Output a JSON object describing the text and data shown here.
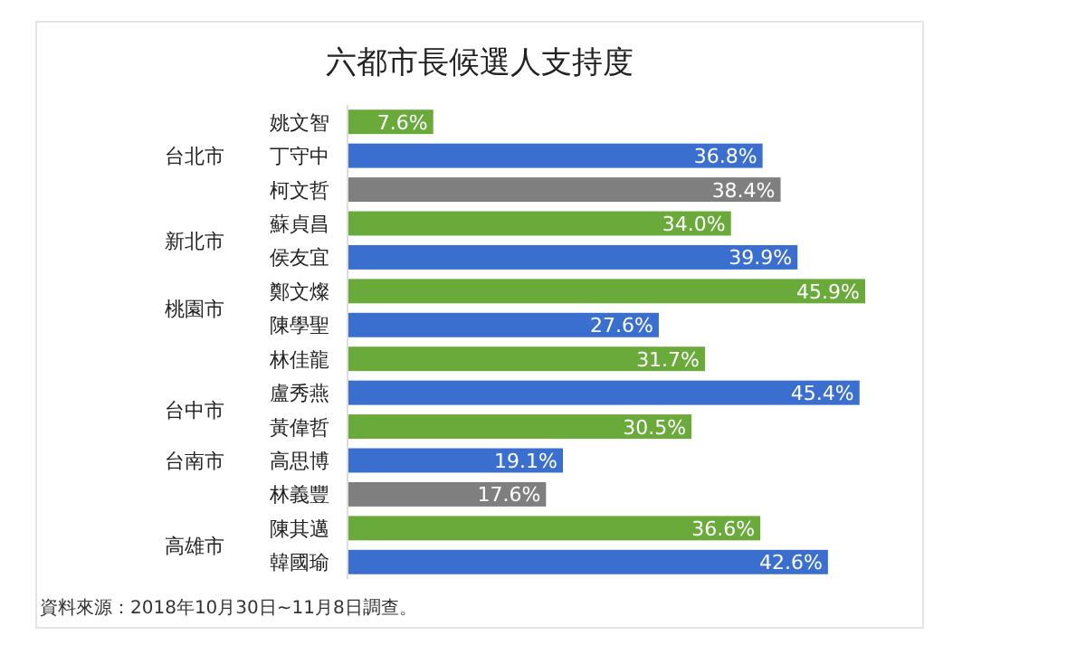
{
  "chart_data": {
    "type": "bar",
    "orientation": "horizontal",
    "title": "六都市長候選人支持度",
    "categories": [
      "姚文智",
      "丁守中",
      "柯文哲",
      "蘇貞昌",
      "侯友宜",
      "鄭文燦",
      "陳學聖",
      "林佳龍",
      "盧秀燕",
      "黃偉哲",
      "高思博",
      "林義豐",
      "陳其邁",
      "韓國瑜"
    ],
    "values": [
      7.6,
      36.8,
      38.4,
      34.0,
      39.9,
      45.9,
      27.6,
      31.7,
      45.4,
      30.5,
      19.1,
      17.6,
      36.6,
      42.6
    ],
    "value_labels": [
      "7.6%",
      "36.8%",
      "38.4%",
      "34.0%",
      "39.9%",
      "45.9%",
      "27.6%",
      "31.7%",
      "45.4%",
      "30.5%",
      "19.1%",
      "17.6%",
      "36.6%",
      "42.6%"
    ],
    "colors": [
      "#6aaa3a",
      "#3b6fcf",
      "#7f7f7f",
      "#6aaa3a",
      "#3b6fcf",
      "#6aaa3a",
      "#3b6fcf",
      "#6aaa3a",
      "#3b6fcf",
      "#6aaa3a",
      "#3b6fcf",
      "#7f7f7f",
      "#6aaa3a",
      "#3b6fcf"
    ],
    "annotations": [
      "台北市",
      "新北市",
      "桃園市",
      "台中市",
      "台南市",
      "高雄市",
      "資料來源：2018年10月30日~11月8日調查。"
    ]
  }
}
